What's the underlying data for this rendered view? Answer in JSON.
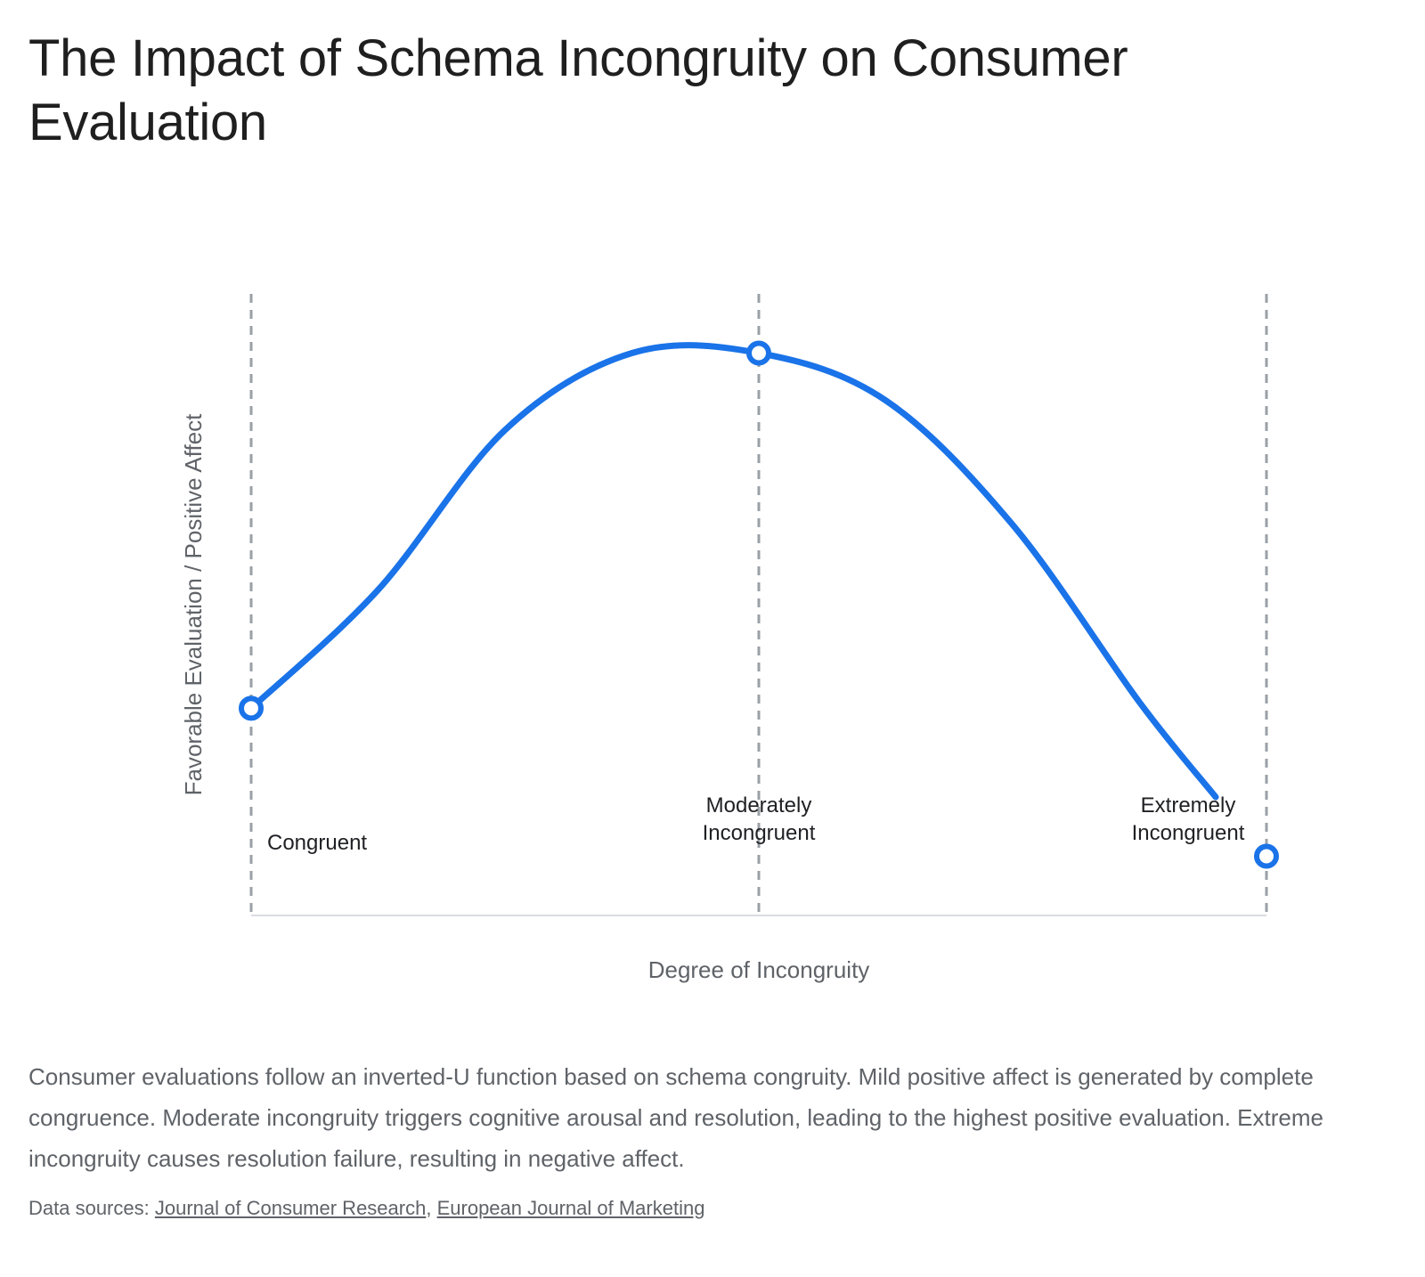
{
  "page": {
    "title": "The Impact of Schema Incongruity on Consumer Evaluation",
    "description": "Consumer evaluations follow an inverted-U function based on schema congruity. Mild positive affect is generated by complete congruence. Moderate incongruity triggers cognitive arousal and resolution, leading to the highest positive evaluation. Extreme incongruity causes resolution failure, resulting in negative affect.",
    "sources_label": "Data sources:",
    "sources": [
      {
        "label": "Journal of Consumer Research"
      },
      {
        "label": "European Journal of Marketing"
      }
    ],
    "source_separator": ","
  },
  "chart_data": {
    "type": "line",
    "title": "The Impact of Schema Incongruity on Consumer Evaluation",
    "xlabel": "Degree of Incongruity",
    "ylabel": "Favorable Evaluation / Positive Affect",
    "xlim": [
      0,
      2
    ],
    "ylim": [
      0,
      10.5
    ],
    "grid": false,
    "legend": "none",
    "line_color": "#1a73e8",
    "reference_line_color": "#9aa0a6",
    "axis_color": "#dadce0",
    "categories": [
      {
        "x": 0,
        "label": "Congruent"
      },
      {
        "x": 1,
        "label": "Moderately Incongruent",
        "lines": [
          "Moderately",
          "Incongruent"
        ]
      },
      {
        "x": 2,
        "label": "Extremely Incongruent",
        "lines": [
          "Extremely",
          "Incongruent"
        ]
      }
    ],
    "series": [
      {
        "values": [
          {
            "x": 0,
            "y": 3.5
          },
          {
            "x": 0.25,
            "y": 5.5
          },
          {
            "x": 0.5,
            "y": 8.2
          },
          {
            "x": 0.75,
            "y": 9.5
          },
          {
            "x": 1,
            "y": 9.5
          },
          {
            "x": 1.25,
            "y": 8.7
          },
          {
            "x": 1.5,
            "y": 6.6
          },
          {
            "x": 1.75,
            "y": 3.6
          },
          {
            "x": 1.9,
            "y": 2.0
          }
        ],
        "color": "#1a73e8"
      }
    ],
    "key_points": [
      {
        "x": 0,
        "y": 3.5
      },
      {
        "x": 1,
        "y": 9.5
      },
      {
        "x": 2,
        "y": 1.0
      }
    ]
  }
}
